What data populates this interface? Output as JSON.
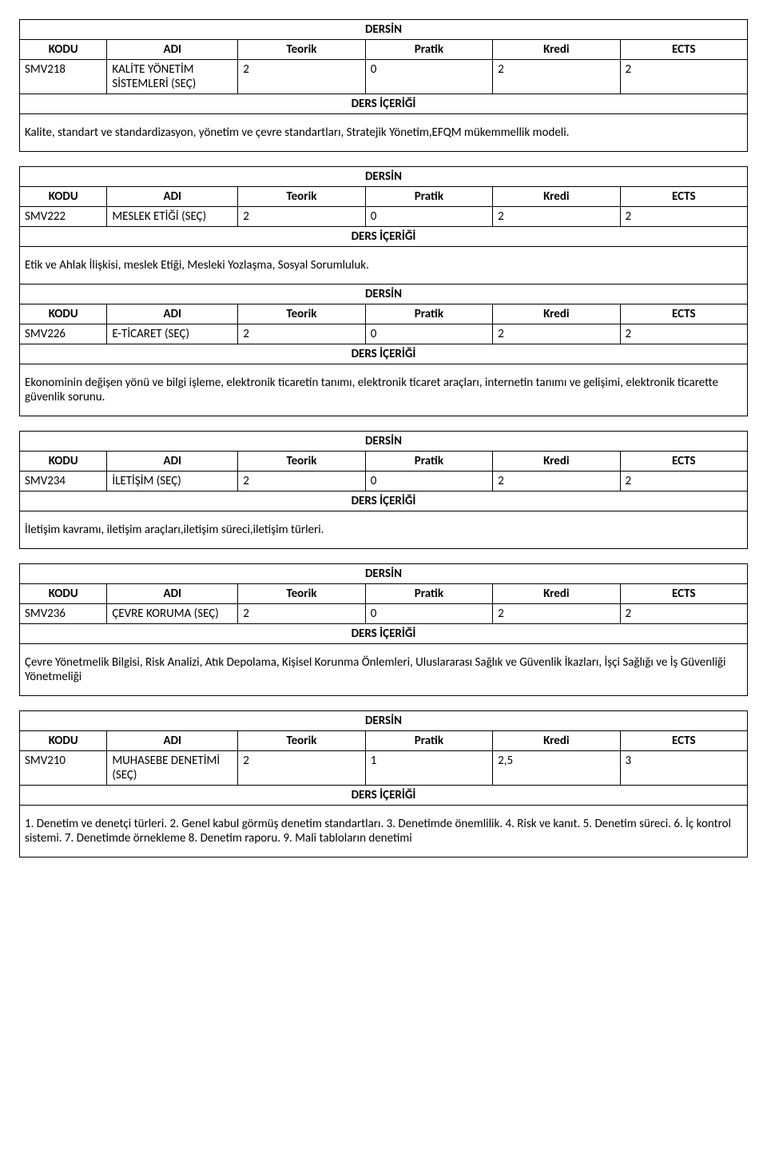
{
  "labels": {
    "dersin": "DERSİN",
    "kodu": "KODU",
    "adi": "ADI",
    "teorik": "Teorik",
    "pratik": "Pratik",
    "kredi": "Kredi",
    "ects": "ECTS",
    "icerigi": "DERS İÇERİĞİ"
  },
  "courses": [
    {
      "kodu": "SMV218",
      "adi": "KALİTE YÖNETİM SİSTEMLERİ (SEÇ)",
      "teorik": "2",
      "pratik": "0",
      "kredi": "2",
      "ects": "2",
      "desc": "Kalite, standart ve standardizasyon, yönetim ve çevre standartları, Stratejik Yönetim,EFQM mükemmellik modeli."
    },
    {
      "kodu": "SMV222",
      "adi": "MESLEK ETİĞİ (SEÇ)",
      "teorik": "2",
      "pratik": "0",
      "kredi": "2",
      "ects": "2",
      "desc": "Etik ve Ahlak İlişkisi, meslek Etiği, Mesleki Yozlaşma, Sosyal Sorumluluk."
    },
    {
      "kodu": "SMV226",
      "adi": "E-TİCARET (SEÇ)",
      "teorik": "2",
      "pratik": "0",
      "kredi": "2",
      "ects": "2",
      "desc": "Ekonominin değişen yönü ve bilgi işleme, elektronik ticaretin tanımı, elektronik ticaret araçları, internetin tanımı ve gelişimi, elektronik ticarette güvenlik sorunu."
    },
    {
      "kodu": "SMV234",
      "adi": "İLETİŞİM (SEÇ)",
      "teorik": "2",
      "pratik": "0",
      "kredi": "2",
      "ects": "2",
      "desc": "İletişim kavramı, iletişim araçları,iletişim süreci,iletişim türleri."
    },
    {
      "kodu": "SMV236",
      "adi": "ÇEVRE KORUMA (SEÇ)",
      "teorik": "2",
      "pratik": "0",
      "kredi": "2",
      "ects": "2",
      "desc": "Çevre Yönetmelik Bilgisi, Risk Analizi, Atık Depolama, Kişisel Korunma Önlemleri, Uluslararası Sağlık ve Güvenlik İkazları, İşçi Sağlığı ve İş Güvenliği Yönetmeliği"
    },
    {
      "kodu": "SMV210",
      "adi": "MUHASEBE DENETİMİ (SEÇ)",
      "teorik": "2",
      "pratik": "1",
      "kredi": "2,5",
      "ects": "3",
      "desc": "1. Denetim ve denetçi türleri. 2. Genel kabul görmüş denetim standartları. 3. Denetimde önemlilik. 4. Risk ve kanıt. 5. Denetim süreci. 6. İç kontrol sistemi. 7. Denetimde örnekleme 8. Denetim raporu. 9. Mali tabloların denetimi"
    }
  ],
  "merge": {
    "after": 1
  }
}
